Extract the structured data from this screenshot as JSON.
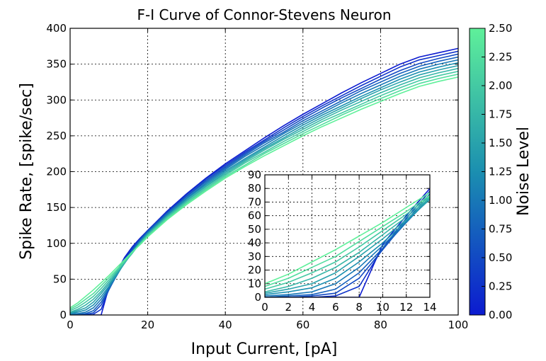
{
  "chart_data": {
    "type": "line",
    "title": "F-I Curve of Connor-Stevens Neuron",
    "xlabel": "Input Current, [pA]",
    "ylabel": "Spike Rate, [spike/sec]",
    "xlim": [
      0,
      100
    ],
    "ylim": [
      0,
      400
    ],
    "xticks": [
      "0",
      "20",
      "40",
      "60",
      "80",
      "100"
    ],
    "yticks": [
      "0",
      "50",
      "100",
      "150",
      "200",
      "250",
      "300",
      "350",
      "400"
    ],
    "grid": true,
    "colorbar": {
      "label": "Noise Level",
      "range": [
        0,
        2.5
      ],
      "ticks": [
        "0.00",
        "0.25",
        "0.50",
        "0.75",
        "1.00",
        "1.25",
        "1.50",
        "1.75",
        "2.00",
        "2.25",
        "2.50"
      ],
      "colors": [
        "#0c1bd0",
        "#1b8fb0",
        "#5ff09a"
      ]
    },
    "noise_levels": [
      0,
      0.25,
      0.5,
      0.75,
      1.0,
      1.25,
      1.5,
      1.75,
      2.0,
      2.25,
      2.5
    ],
    "x": [
      0,
      2,
      4,
      6,
      8,
      10,
      12,
      14,
      16,
      18,
      20,
      25,
      30,
      35,
      40,
      45,
      50,
      55,
      60,
      65,
      70,
      75,
      80,
      85,
      90,
      95,
      100
    ],
    "series": [
      {
        "values": [
          0,
          0,
          0,
          0,
          0,
          39,
          60,
          80,
          95,
          107,
          118,
          145,
          169,
          191,
          211,
          229,
          247,
          264,
          280,
          295,
          310,
          324,
          337,
          350,
          360,
          366,
          372
        ]
      },
      {
        "values": [
          0,
          0,
          0,
          1,
          8,
          36,
          58,
          78,
          94,
          106,
          118,
          144,
          168,
          190,
          209,
          227,
          244,
          261,
          277,
          292,
          306,
          320,
          333,
          346,
          356,
          362,
          368
        ]
      },
      {
        "values": [
          0,
          0,
          1,
          3,
          14,
          35,
          56,
          76,
          92,
          105,
          117,
          143,
          166,
          188,
          207,
          225,
          242,
          258,
          274,
          289,
          303,
          316,
          329,
          341,
          351,
          358,
          364
        ]
      },
      {
        "values": [
          0,
          1,
          2,
          6,
          18,
          36,
          55,
          74,
          90,
          104,
          116,
          142,
          165,
          186,
          205,
          223,
          240,
          255,
          271,
          285,
          299,
          313,
          325,
          337,
          347,
          354,
          360
        ]
      },
      {
        "values": [
          1,
          2,
          4,
          10,
          22,
          38,
          55,
          73,
          89,
          103,
          115,
          140,
          163,
          184,
          203,
          221,
          237,
          253,
          268,
          282,
          296,
          309,
          321,
          333,
          343,
          350,
          356
        ]
      },
      {
        "values": [
          2,
          4,
          7,
          14,
          26,
          40,
          56,
          72,
          88,
          102,
          114,
          139,
          162,
          182,
          201,
          218,
          234,
          250,
          265,
          279,
          292,
          305,
          317,
          329,
          339,
          346,
          352
        ]
      },
      {
        "values": [
          3,
          6,
          10,
          18,
          30,
          43,
          57,
          72,
          87,
          101,
          113,
          138,
          160,
          180,
          199,
          216,
          232,
          247,
          262,
          276,
          289,
          302,
          314,
          325,
          335,
          342,
          348
        ]
      },
      {
        "values": [
          4,
          8,
          14,
          22,
          33,
          46,
          59,
          73,
          86,
          100,
          112,
          137,
          159,
          179,
          197,
          214,
          230,
          245,
          259,
          273,
          286,
          298,
          310,
          321,
          331,
          338,
          344
        ]
      },
      {
        "values": [
          6,
          11,
          18,
          26,
          37,
          49,
          61,
          74,
          87,
          99,
          111,
          136,
          157,
          177,
          195,
          212,
          227,
          242,
          256,
          270,
          282,
          294,
          306,
          317,
          327,
          334,
          340
        ]
      },
      {
        "values": [
          8,
          14,
          22,
          30,
          41,
          52,
          63,
          75,
          87,
          99,
          110,
          134,
          156,
          175,
          193,
          209,
          225,
          239,
          253,
          266,
          279,
          291,
          302,
          313,
          323,
          330,
          336
        ]
      },
      {
        "values": [
          10,
          17,
          26,
          35,
          45,
          55,
          66,
          77,
          88,
          98,
          109,
          133,
          154,
          173,
          191,
          207,
          222,
          236,
          250,
          263,
          275,
          287,
          298,
          309,
          319,
          326,
          332
        ]
      }
    ],
    "inset": {
      "xlim": [
        0,
        14
      ],
      "ylim": [
        0,
        90
      ],
      "xticks": [
        "0",
        "2",
        "4",
        "6",
        "8",
        "10",
        "12",
        "14"
      ],
      "yticks": [
        "0",
        "10",
        "20",
        "30",
        "40",
        "50",
        "60",
        "70",
        "80",
        "90"
      ],
      "grid": true
    }
  }
}
